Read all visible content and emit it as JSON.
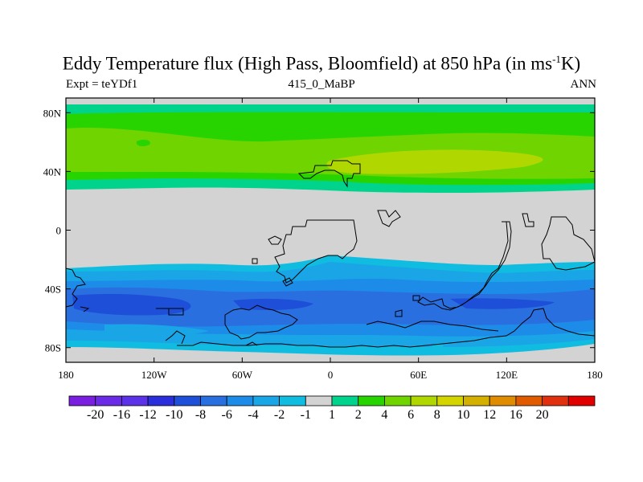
{
  "title": {
    "main": "Eddy Temperature flux (High Pass, Bloomfield) at 850 hPa (in ms",
    "sup": "-1",
    "tail": "K)"
  },
  "subtitle": {
    "left": "Expt = teYDf1",
    "center": "415_0_MaBP",
    "right": "ANN"
  },
  "axes": {
    "lon_range": [
      -180,
      180
    ],
    "lat_range": [
      -90,
      90
    ],
    "x_ticks": [
      {
        "value": -180,
        "label": "180"
      },
      {
        "value": -120,
        "label": "120W"
      },
      {
        "value": -60,
        "label": "60W"
      },
      {
        "value": 0,
        "label": "0"
      },
      {
        "value": 60,
        "label": "60E"
      },
      {
        "value": 120,
        "label": "120E"
      },
      {
        "value": 180,
        "label": "180"
      }
    ],
    "y_ticks": [
      {
        "value": 80,
        "label": "80N"
      },
      {
        "value": 40,
        "label": "40N"
      },
      {
        "value": 0,
        "label": "0"
      },
      {
        "value": -40,
        "label": "40S"
      },
      {
        "value": -80,
        "label": "80S"
      }
    ]
  },
  "colorbar": {
    "colors": [
      "#7a1ee0",
      "#6a2ae6",
      "#5c32e8",
      "#2b2fdb",
      "#1e4fd8",
      "#2a6fe0",
      "#1d8ce8",
      "#1aa5e6",
      "#10bde0",
      "#d3d3d3",
      "#00d48c",
      "#28d400",
      "#6fd400",
      "#b0d800",
      "#d4d400",
      "#d4b000",
      "#e08c00",
      "#e05a00",
      "#e03010",
      "#e00000"
    ],
    "labels": [
      "-20",
      "-16",
      "-12",
      "-10",
      "-8",
      "-6",
      "-4",
      "-2",
      "-1",
      "1",
      "2",
      "4",
      "6",
      "8",
      "10",
      "12",
      "16",
      "20"
    ]
  }
}
